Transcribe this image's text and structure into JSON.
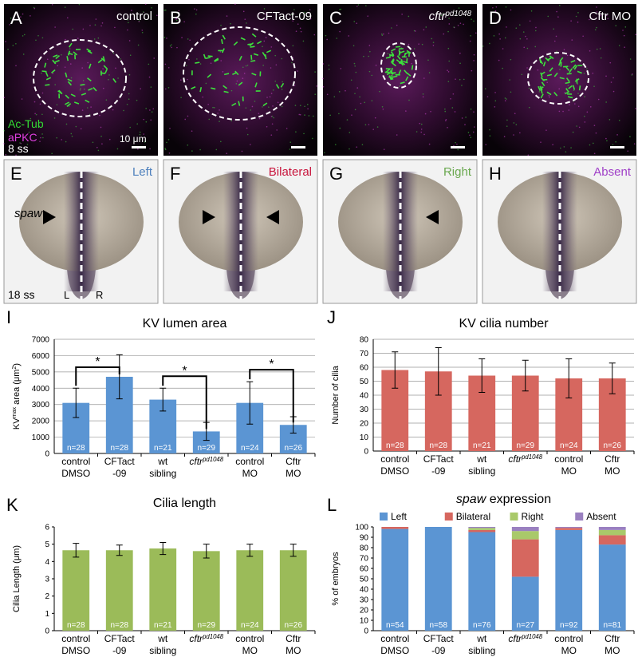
{
  "panels_top": [
    {
      "letter": "A",
      "label": "control"
    },
    {
      "letter": "B",
      "label": "CFTact-09"
    },
    {
      "letter": "C",
      "label": [
        {
          "text": "cftr",
          "style": "italic"
        },
        {
          "text": "pd1048",
          "style": "italic-sup"
        }
      ]
    },
    {
      "letter": "D",
      "label": "Cftr MO"
    }
  ],
  "stain_labels": [
    {
      "text": "Ac-Tub",
      "color": "#33dd33"
    },
    {
      "text": "aPKC",
      "color": "#e040e0"
    }
  ],
  "stage_top": "8 ss",
  "scale_bar": "10 μm",
  "panels_bottom": [
    {
      "letter": "E",
      "label": "Left",
      "color": "#4f81bd"
    },
    {
      "letter": "F",
      "label": "Bilateral",
      "color": "#c8143c"
    },
    {
      "letter": "G",
      "label": "Right",
      "color": "#6aa84f"
    },
    {
      "letter": "H",
      "label": "Absent",
      "color": "#a040c8"
    }
  ],
  "spaw_label": "spaw",
  "stage_bottom": "18 ss",
  "left_label": "L",
  "right_label": "R",
  "chart_data": [
    {
      "type": "bar",
      "panel": "I",
      "title": "KV lumen area",
      "y_label": [
        {
          "text": "KV"
        },
        {
          "text": "max",
          "style": "sup"
        },
        {
          "text": " area (μm"
        },
        {
          "text": "2",
          "style": "sup"
        },
        {
          "text": ")"
        }
      ],
      "categories": [
        [
          "control",
          "DMSO"
        ],
        [
          "CFTact",
          "-09"
        ],
        [
          "wt",
          "sibling"
        ],
        [
          [
            {
              "text": "cftr",
              "style": "italic"
            },
            {
              "text": "pd1048",
              "style": "italic-sup"
            }
          ]
        ],
        [
          "control",
          "MO"
        ],
        [
          "Cftr",
          "MO"
        ]
      ],
      "values": [
        3100,
        4700,
        3300,
        1350,
        3100,
        1750
      ],
      "errors": [
        900,
        1350,
        700,
        550,
        1300,
        500
      ],
      "n_labels": [
        "n=28",
        "n=28",
        "n=21",
        "n=29",
        "n=24",
        "n=26"
      ],
      "color": "#5b95d3",
      "ylim": [
        0,
        7000
      ],
      "yticks": [
        0,
        1000,
        2000,
        3000,
        4000,
        5000,
        6000,
        7000
      ],
      "grid": true,
      "significance": [
        {
          "pair": [
            0,
            1
          ],
          "label": "*"
        },
        {
          "pair": [
            2,
            3
          ],
          "label": "*"
        },
        {
          "pair": [
            4,
            5
          ],
          "label": "*"
        }
      ]
    },
    {
      "type": "bar",
      "panel": "J",
      "title": "KV cilia number",
      "y_label": "Number of cilia",
      "categories": [
        [
          "control",
          "DMSO"
        ],
        [
          "CFTact",
          "-09"
        ],
        [
          "wt",
          "sibling"
        ],
        [
          [
            {
              "text": "cftr",
              "style": "italic"
            },
            {
              "text": "pd1048",
              "style": "italic-sup"
            }
          ]
        ],
        [
          "control",
          "MO"
        ],
        [
          "Cftr",
          "MO"
        ]
      ],
      "values": [
        58,
        57,
        54,
        54,
        52,
        52
      ],
      "errors": [
        13,
        17,
        12,
        11,
        14,
        11
      ],
      "n_labels": [
        "n=28",
        "n=28",
        "n=21",
        "n=29",
        "n=24",
        "n=26"
      ],
      "color": "#d6675f",
      "ylim": [
        0,
        80
      ],
      "yticks": [
        0,
        10,
        20,
        30,
        40,
        50,
        60,
        70,
        80
      ],
      "grid": true
    },
    {
      "type": "bar",
      "panel": "K",
      "title": "Cilia length",
      "y_label": "Cilia Length (μm)",
      "categories": [
        [
          "control",
          "DMSO"
        ],
        [
          "CFTact",
          "-09"
        ],
        [
          "wt",
          "sibling"
        ],
        [
          [
            {
              "text": "cftr",
              "style": "italic"
            },
            {
              "text": "pd1048",
              "style": "italic-sup"
            }
          ]
        ],
        [
          "control",
          "MO"
        ],
        [
          "Cftr",
          "MO"
        ]
      ],
      "values": [
        4.65,
        4.65,
        4.75,
        4.6,
        4.65,
        4.65
      ],
      "errors": [
        0.4,
        0.3,
        0.35,
        0.4,
        0.35,
        0.35
      ],
      "n_labels": [
        "n=28",
        "n=28",
        "n=21",
        "n=29",
        "n=24",
        "n=26"
      ],
      "color": "#9bbb59",
      "ylim": [
        0,
        6
      ],
      "yticks": [
        0,
        1,
        2,
        3,
        4,
        5,
        6
      ],
      "grid": false
    },
    {
      "type": "stacked_bar",
      "panel": "L",
      "title": [
        {
          "text": "spaw",
          "style": "italic"
        },
        {
          "text": " expression"
        }
      ],
      "y_label": "% of embryos",
      "categories": [
        [
          "control",
          "DMSO"
        ],
        [
          "CFTact",
          "-09"
        ],
        [
          "wt",
          "sibling"
        ],
        [
          [
            {
              "text": "cftr",
              "style": "italic"
            },
            {
              "text": "pd1048",
              "style": "italic-sup"
            }
          ]
        ],
        [
          "control",
          "MO"
        ],
        [
          "Cftr",
          "MO"
        ]
      ],
      "series": [
        {
          "name": "Left",
          "color": "#5b95d3",
          "values": [
            98,
            100,
            95,
            52,
            97,
            83
          ]
        },
        {
          "name": "Bilateral",
          "color": "#d6675f",
          "values": [
            2,
            0,
            2,
            36,
            2,
            9
          ]
        },
        {
          "name": "Right",
          "color": "#a9c96a",
          "values": [
            0,
            0,
            2,
            8,
            0,
            5
          ]
        },
        {
          "name": "Absent",
          "color": "#9a80c0",
          "values": [
            0,
            0,
            1,
            4,
            1,
            3
          ]
        }
      ],
      "n_labels": [
        "n=54",
        "n=58",
        "n=76",
        "n=27",
        "n=92",
        "n=81"
      ],
      "ylim": [
        0,
        100
      ],
      "yticks": [
        0,
        10,
        20,
        30,
        40,
        50,
        60,
        70,
        80,
        90,
        100
      ],
      "grid": false
    }
  ]
}
